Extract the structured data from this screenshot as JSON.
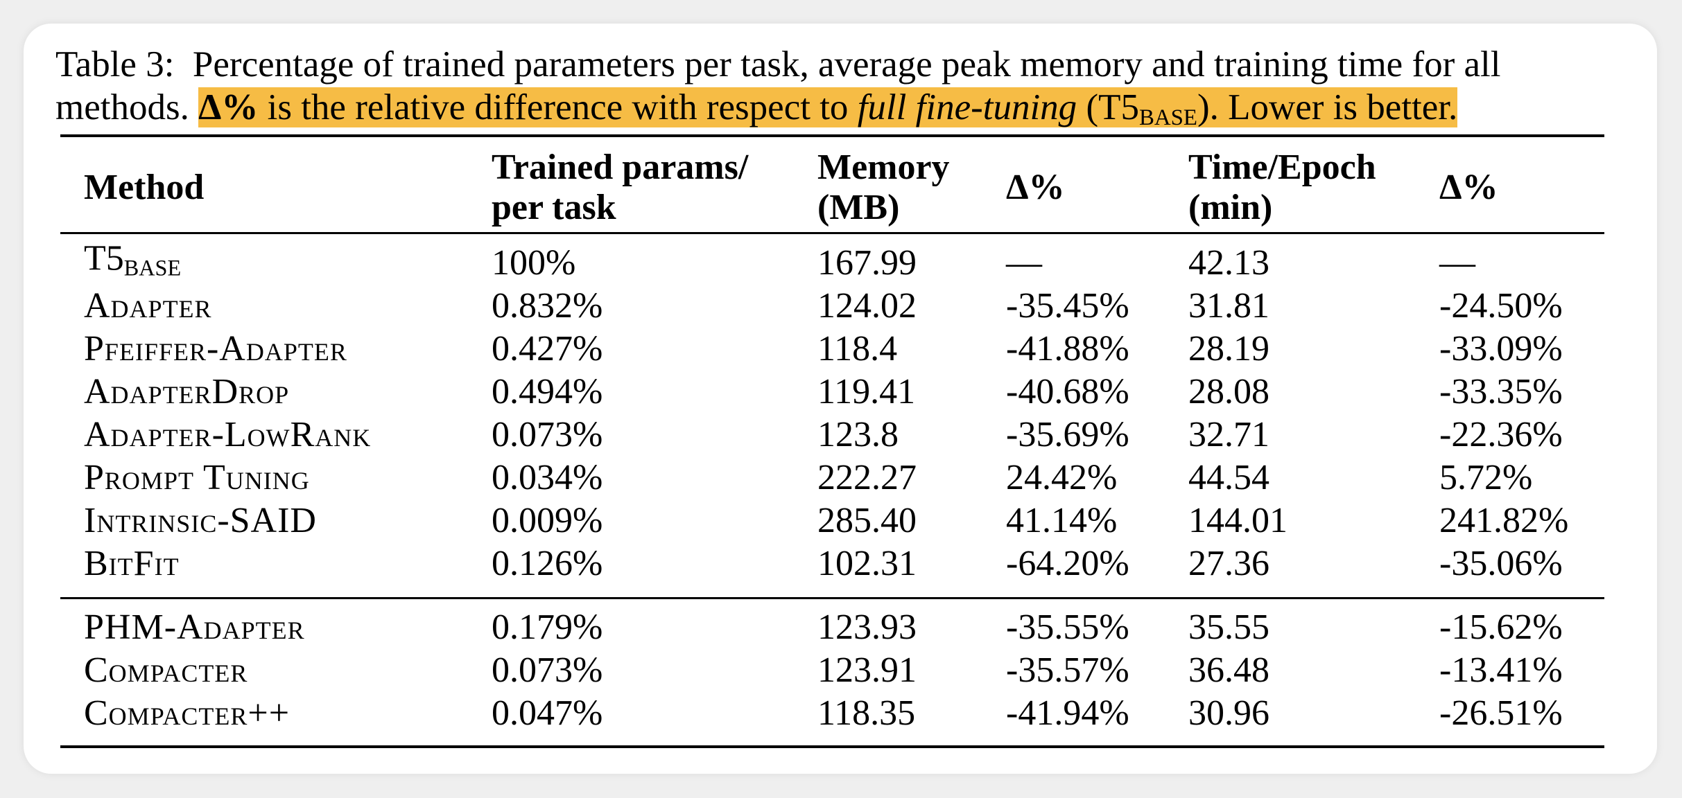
{
  "caption": {
    "label": "Table 3:",
    "text": "Percentage of trained parameters per task, average peak memory and training time for all methods.",
    "highlight": {
      "before": "Δ% is the relative difference with respect to",
      "emphasis": "full fine-tuning",
      "model": "(T5",
      "model_sub": "BASE",
      "after": "). Lower is better."
    }
  },
  "table": {
    "header": [
      [
        "Method"
      ],
      [
        "Trained params/",
        "per task"
      ],
      [
        "Memory",
        "(MB)"
      ],
      [
        "Δ%"
      ],
      [
        "Time/Epoch",
        "(min)"
      ],
      [
        "Δ%"
      ]
    ],
    "groups": [
      [
        {
          "method": {
            "name": "T5",
            "sub": "BASE"
          },
          "cells": [
            "100%",
            "167.99",
            "—",
            "42.13",
            "—"
          ]
        },
        {
          "method": "Adapter",
          "cells": [
            "0.832%",
            "124.02",
            "-35.45%",
            "31.81",
            "-24.50%"
          ]
        },
        {
          "method": "Pfeiffer-Adapter",
          "cells": [
            "0.427%",
            "118.4",
            "-41.88%",
            "28.19",
            "-33.09%"
          ]
        },
        {
          "method": "AdapterDrop",
          "cells": [
            "0.494%",
            "119.41",
            "-40.68%",
            "28.08",
            "-33.35%"
          ]
        },
        {
          "method": "Adapter-LowRank",
          "cells": [
            "0.073%",
            "123.8",
            "-35.69%",
            "32.71",
            "-22.36%"
          ]
        },
        {
          "method": "Prompt Tuning",
          "cells": [
            "0.034%",
            "222.27",
            "24.42%",
            "44.54",
            "5.72%"
          ]
        },
        {
          "method": "Intrinsic-SAID",
          "cells": [
            "0.009%",
            "285.40",
            "41.14%",
            "144.01",
            "241.82%"
          ]
        },
        {
          "method": "BitFit",
          "cells": [
            "0.126%",
            "102.31",
            "-64.20%",
            "27.36",
            "-35.06%"
          ]
        }
      ],
      [
        {
          "method": "PHM-Adapter",
          "cells": [
            "0.179%",
            "123.93",
            "-35.55%",
            "35.55",
            "-15.62%"
          ]
        },
        {
          "method": "Compacter",
          "cells": [
            "0.073%",
            "123.91",
            "-35.57%",
            "36.48",
            "-13.41%"
          ]
        },
        {
          "method": "Compacter++",
          "cells": [
            "0.047%",
            "118.35",
            "-41.94%",
            "30.96",
            "-26.51%"
          ]
        }
      ]
    ]
  }
}
